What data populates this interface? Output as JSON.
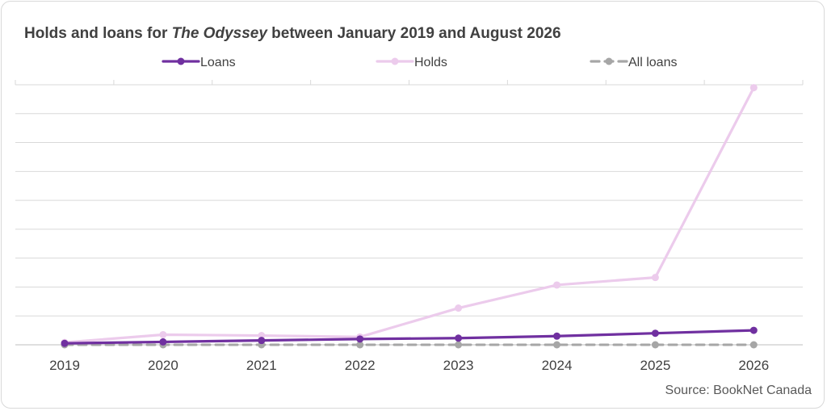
{
  "title": {
    "prefix": "Holds and loans for ",
    "book": "The Odyssey",
    "suffix": " between January 2019 and August 2026"
  },
  "source": "Source: BookNet Canada",
  "chart_data": {
    "type": "line",
    "title": "Holds and loans for The Odyssey between January 2019 and August 2026",
    "categories": [
      "2019",
      "2020",
      "2021",
      "2022",
      "2023",
      "2024",
      "2025",
      "2026"
    ],
    "ylim": [
      0,
      9
    ],
    "grid": true,
    "legend_position": "top-center",
    "series": [
      {
        "name": "Loans",
        "color": "#7030a0",
        "dashed": false,
        "values": [
          0.05,
          0.1,
          0.15,
          0.2,
          0.23,
          0.3,
          0.4,
          0.5
        ]
      },
      {
        "name": "Holds",
        "color": "#eccbec",
        "dashed": false,
        "values": [
          0.08,
          0.35,
          0.32,
          0.27,
          1.27,
          2.07,
          2.33,
          8.9
        ]
      },
      {
        "name": "All loans",
        "color": "#a6a6a6",
        "dashed": true,
        "values": [
          0.0,
          0.0,
          0.0,
          0.0,
          0.0,
          0.0,
          0.0,
          0.0
        ]
      }
    ]
  }
}
